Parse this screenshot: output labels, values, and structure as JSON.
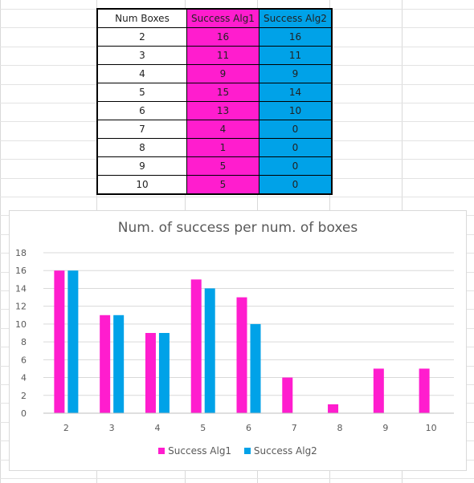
{
  "table": {
    "headers": [
      "Num Boxes",
      "Success Alg1",
      "Success Alg2"
    ],
    "rows": [
      [
        "2",
        "16",
        "16"
      ],
      [
        "3",
        "11",
        "11"
      ],
      [
        "4",
        "9",
        "9"
      ],
      [
        "5",
        "15",
        "14"
      ],
      [
        "6",
        "13",
        "10"
      ],
      [
        "7",
        "4",
        "0"
      ],
      [
        "8",
        "1",
        "0"
      ],
      [
        "9",
        "5",
        "0"
      ],
      [
        "10",
        "5",
        "0"
      ]
    ]
  },
  "colors": {
    "alg1": "#ff1dce",
    "alg2": "#00a2e8"
  },
  "chart_data": {
    "type": "bar",
    "title": "Num. of success per num. of boxes",
    "xlabel": "",
    "ylabel": "",
    "categories": [
      "2",
      "3",
      "4",
      "5",
      "6",
      "7",
      "8",
      "9",
      "10"
    ],
    "series": [
      {
        "name": "Success Alg1",
        "values": [
          16,
          11,
          9,
          15,
          13,
          4,
          1,
          5,
          5
        ]
      },
      {
        "name": "Success Alg2",
        "values": [
          16,
          11,
          9,
          14,
          10,
          0,
          0,
          0,
          0
        ]
      }
    ],
    "ylim": [
      0,
      18
    ],
    "yticks": [
      "0",
      "2",
      "4",
      "6",
      "8",
      "10",
      "12",
      "14",
      "16",
      "18"
    ],
    "grid": true,
    "legend": "bottom"
  }
}
